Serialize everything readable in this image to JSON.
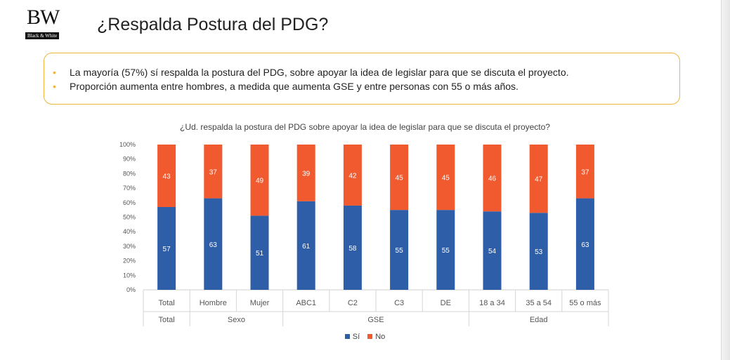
{
  "logo": {
    "mark": "BW",
    "sub": "Black & White"
  },
  "page_title": "¿Respalda Postura del PDG?",
  "summary": [
    "La mayoría (57%) sí respalda la postura del PDG, sobre apoyar la idea de legislar para que se discuta el proyecto.",
    "Proporción aumenta entre hombres, a medida que aumenta GSE y entre personas con 55 o más años."
  ],
  "bullet_glyph": "•",
  "colors": {
    "si": "#2f5ea9",
    "no": "#f1592f",
    "accent": "#f0b43c"
  },
  "chart_data": {
    "type": "bar",
    "stacked": true,
    "title": "¿Ud. respalda la postura del PDG sobre apoyar la idea de legislar para que se discuta el proyecto?",
    "categories": [
      "Total",
      "Hombre",
      "Mujer",
      "ABC1",
      "C2",
      "C3",
      "DE",
      "18 a 34",
      "35 a 54",
      "55 o más"
    ],
    "groups": [
      {
        "label": "Total",
        "span": 1
      },
      {
        "label": "Sexo",
        "span": 2
      },
      {
        "label": "GSE",
        "span": 4
      },
      {
        "label": "Edad",
        "span": 3
      }
    ],
    "series": [
      {
        "name": "Sí",
        "values": [
          57,
          63,
          51,
          61,
          58,
          55,
          55,
          54,
          53,
          63
        ]
      },
      {
        "name": "No",
        "values": [
          43,
          37,
          49,
          39,
          42,
          45,
          45,
          46,
          47,
          37
        ]
      }
    ],
    "yticks": [
      "0%",
      "10%",
      "20%",
      "30%",
      "40%",
      "50%",
      "60%",
      "70%",
      "80%",
      "90%",
      "100%"
    ],
    "ylim": [
      0,
      100
    ],
    "grid": false,
    "legend_position": "bottom"
  }
}
